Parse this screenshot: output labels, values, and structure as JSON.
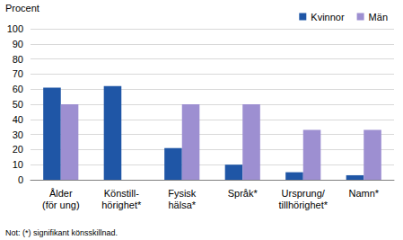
{
  "chart_data": {
    "type": "bar",
    "y_label": "Procent",
    "annotations": [
      "Not: (*) signifikant könsskillnad."
    ],
    "categories": [
      "Ålder\n(för ung)",
      "Könstill-\nhörighet*",
      "Fysisk\nhälsa*",
      "Språk*",
      "Ursprung/\ntillhörighet*",
      "Namn*"
    ],
    "series": [
      {
        "name": "Kvinnor",
        "color": "#1f56a6",
        "values": [
          61,
          62,
          21,
          10,
          5,
          3
        ]
      },
      {
        "name": "Män",
        "color": "#9d8fd1",
        "values": [
          50,
          0,
          50,
          50,
          33,
          33
        ]
      }
    ],
    "ylim": [
      0,
      100
    ],
    "yticks": [
      0,
      10,
      20,
      30,
      40,
      50,
      60,
      70,
      80,
      90,
      100
    ],
    "grid": true,
    "legend": "top-right",
    "data_labels": false
  }
}
